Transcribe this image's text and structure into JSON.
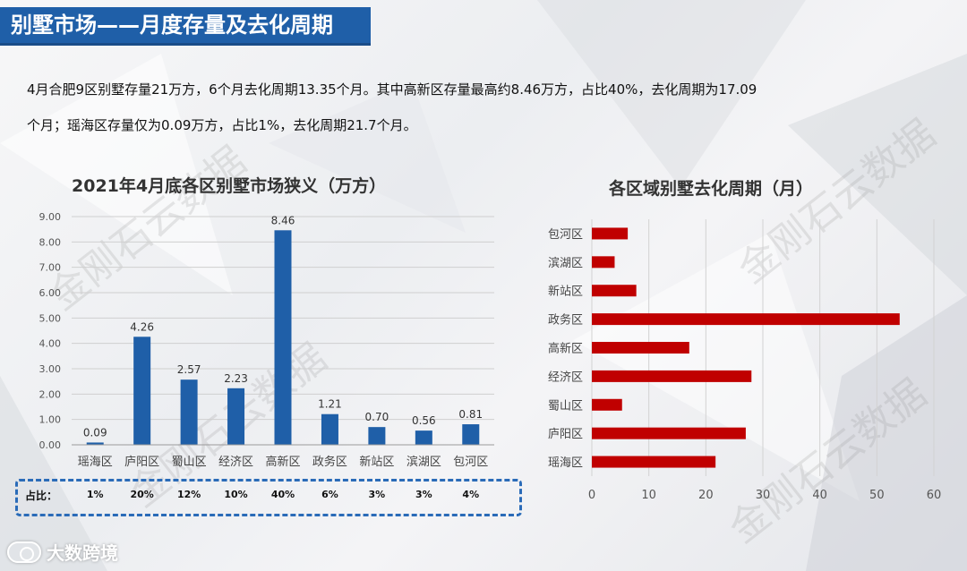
{
  "header": {
    "title": "别墅市场——月度存量及去化周期"
  },
  "summary": {
    "line1": "4月合肥9区别墅存量21万方，6个月去化周期13.35个月。其中高新区存量最高约8.46万方，占比40%，去化周期为17.09",
    "line2": "个月；瑶海区存量仅为0.09万方，占比1%，去化周期21.7个月。"
  },
  "watermark": "金刚石云数据",
  "logo": {
    "text": "大数跨境",
    "icon": "logo-icon"
  },
  "share_row": {
    "label": "占比：",
    "values": [
      "1%",
      "20%",
      "12%",
      "10%",
      "40%",
      "6%",
      "3%",
      "3%",
      "4%"
    ]
  },
  "colors": {
    "title_bar": "#1f5fa8",
    "bar_blue": "#1f5fa8",
    "bar_red": "#c00000",
    "dashed_box": "#2a6bb8"
  },
  "chart_data": [
    {
      "type": "bar",
      "title": "2021年4月底各区别墅市场狭义（万方）",
      "categories": [
        "瑶海区",
        "庐阳区",
        "蜀山区",
        "经济区",
        "高新区",
        "政务区",
        "新站区",
        "滨湖区",
        "包河区"
      ],
      "values": [
        0.09,
        4.26,
        2.57,
        2.23,
        8.46,
        1.21,
        0.7,
        0.56,
        0.81
      ],
      "data_labels": [
        "0.09",
        "4.26",
        "2.57",
        "2.23",
        "8.46",
        "1.21",
        "0.70",
        "0.56",
        "0.81"
      ],
      "yticks": [
        "0.00",
        "1.00",
        "2.00",
        "3.00",
        "4.00",
        "5.00",
        "6.00",
        "7.00",
        "8.00",
        "9.00"
      ],
      "ylim": [
        0,
        9
      ],
      "grid": true
    },
    {
      "type": "bar",
      "orientation": "horizontal",
      "title": "各区域别墅去化周期（月）",
      "categories": [
        "包河区",
        "滨湖区",
        "新站区",
        "政务区",
        "高新区",
        "经济区",
        "蜀山区",
        "庐阳区",
        "瑶海区"
      ],
      "values": [
        6.3,
        4.0,
        7.8,
        54.0,
        17.09,
        28.0,
        5.3,
        27.0,
        21.7
      ],
      "xticks": [
        "0",
        "10",
        "20",
        "30",
        "40",
        "50",
        "60"
      ],
      "xlim": [
        0,
        60
      ],
      "grid": true
    }
  ]
}
